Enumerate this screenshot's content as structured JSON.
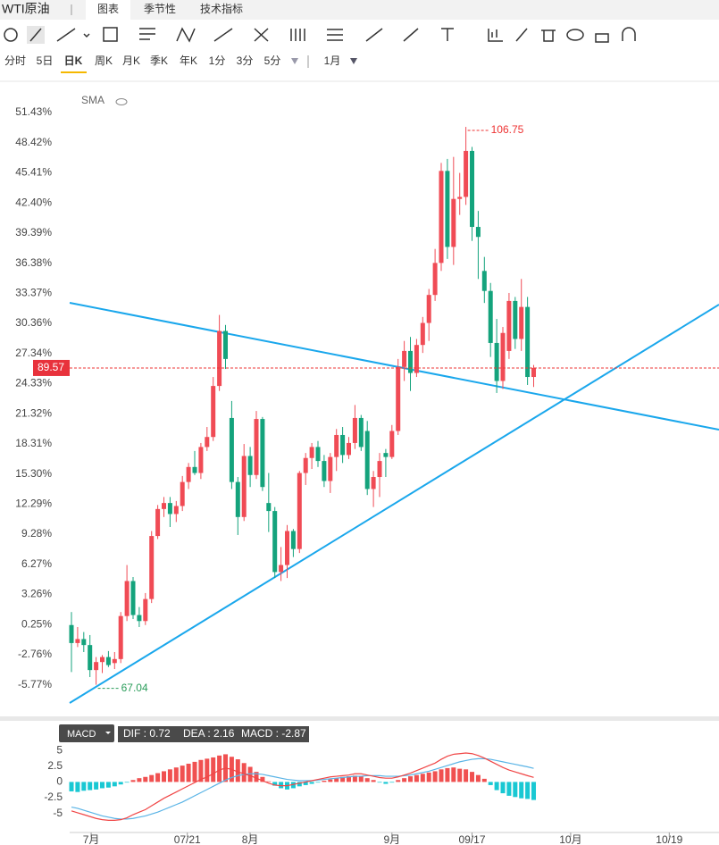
{
  "ui": {
    "instrument": "WTI原油",
    "tabs": [
      "图表",
      "季节性",
      "技术指标"
    ],
    "periods": [
      "分时",
      "5日",
      "日K",
      "周K",
      "月K",
      "季K",
      "年K",
      "1分",
      "3分",
      "5分"
    ],
    "range": "1月"
  },
  "chart_data": [
    {
      "type": "candlestick",
      "indicator": "SMA",
      "up_color": "#f04b55",
      "down_color": "#14a37c",
      "ohlc": [
        [
          0.2,
          1.5,
          -4.5,
          -1.6
        ],
        [
          -1.6,
          0,
          -2,
          -1.2
        ],
        [
          -1.2,
          -0.5,
          -2.5,
          -1.8
        ],
        [
          -1.8,
          -0.8,
          -5.0,
          -4.3
        ],
        [
          -4.3,
          -3.0,
          -5.77,
          -3.5
        ],
        [
          -3.5,
          -2.8,
          -4.6,
          -3.0
        ],
        [
          -3.0,
          -2.4,
          -4.0,
          -3.8
        ],
        [
          -3.6,
          -2.5,
          -4.2,
          -3.2
        ],
        [
          -3.2,
          1.5,
          -3.6,
          1.1
        ],
        [
          1.1,
          6.2,
          0.6,
          4.6
        ],
        [
          4.6,
          5.0,
          0.8,
          1.2
        ],
        [
          1.2,
          2.0,
          0.0,
          0.6
        ],
        [
          0.6,
          3.4,
          0.2,
          2.8
        ],
        [
          2.8,
          9.6,
          2.4,
          9.1
        ],
        [
          9.1,
          12.2,
          8.8,
          11.8
        ],
        [
          11.8,
          13.0,
          11.0,
          12.4
        ],
        [
          12.4,
          13.0,
          10.0,
          11.3
        ],
        [
          11.3,
          12.6,
          10.5,
          12.1
        ],
        [
          12.1,
          15.1,
          11.6,
          14.5
        ],
        [
          14.5,
          16.4,
          13.8,
          16.0
        ],
        [
          16.0,
          17.6,
          15.2,
          15.4
        ],
        [
          15.4,
          18.4,
          14.8,
          18.0
        ],
        [
          18.0,
          20.0,
          17.6,
          19.0
        ],
        [
          19.0,
          25.0,
          18.6,
          24.1
        ],
        [
          24.1,
          31.2,
          23.6,
          29.6
        ],
        [
          29.6,
          30.2,
          25.8,
          26.8
        ],
        [
          20.9,
          22.6,
          13.8,
          14.5
        ],
        [
          14.5,
          15.0,
          9.2,
          11.0
        ],
        [
          11.0,
          18.3,
          10.6,
          17.1
        ],
        [
          17.1,
          18.0,
          14.0,
          15.2
        ],
        [
          15.2,
          21.6,
          14.8,
          20.8
        ],
        [
          20.8,
          21.0,
          13.6,
          14.0
        ],
        [
          12.4,
          15.4,
          9.5,
          11.6
        ],
        [
          11.6,
          12.0,
          4.9,
          5.5
        ],
        [
          5.5,
          8.0,
          4.6,
          6.2
        ],
        [
          6.2,
          10.2,
          4.9,
          9.6
        ],
        [
          9.6,
          9.8,
          7.0,
          7.8
        ],
        [
          7.8,
          15.6,
          7.4,
          15.4
        ],
        [
          15.4,
          17.4,
          14.2,
          16.9
        ],
        [
          16.9,
          18.4,
          15.8,
          18.0
        ],
        [
          18.0,
          18.6,
          16.0,
          16.6
        ],
        [
          16.6,
          17.2,
          14.0,
          14.6
        ],
        [
          14.6,
          17.4,
          13.4,
          17.0
        ],
        [
          17.0,
          19.8,
          15.6,
          19.2
        ],
        [
          19.2,
          20.0,
          16.4,
          17.2
        ],
        [
          17.2,
          19.0,
          16.8,
          18.4
        ],
        [
          18.4,
          22.2,
          17.8,
          20.9
        ],
        [
          20.9,
          21.2,
          17.6,
          18.0
        ],
        [
          19.6,
          20.6,
          13.2,
          13.8
        ],
        [
          13.8,
          15.6,
          12.0,
          15.0
        ],
        [
          15.0,
          17.4,
          13.0,
          16.6
        ],
        [
          17.4,
          17.8,
          15.0,
          17.0
        ],
        [
          17.0,
          20.2,
          16.8,
          19.6
        ],
        [
          19.6,
          26.8,
          19.2,
          26.0
        ],
        [
          26.0,
          28.6,
          24.6,
          27.6
        ],
        [
          27.6,
          29.0,
          23.6,
          25.4
        ],
        [
          25.4,
          28.8,
          25.0,
          28.2
        ],
        [
          28.2,
          31.0,
          27.4,
          30.4
        ],
        [
          30.4,
          33.8,
          28.6,
          33.2
        ],
        [
          33.2,
          37.8,
          32.6,
          36.4
        ],
        [
          36.4,
          46.4,
          35.6,
          45.6
        ],
        [
          45.6,
          46.8,
          36.8,
          38.0
        ],
        [
          38.0,
          47.0,
          36.2,
          42.8
        ],
        [
          42.8,
          45.4,
          41.2,
          43.0
        ],
        [
          43.0,
          50.0,
          42.2,
          47.6
        ],
        [
          47.6,
          48.0,
          38.6,
          40.0
        ],
        [
          40.0,
          41.6,
          34.8,
          39.0
        ],
        [
          35.6,
          37.0,
          32.4,
          33.6
        ],
        [
          33.6,
          34.4,
          27.0,
          28.4
        ],
        [
          28.4,
          30.8,
          23.4,
          24.6
        ],
        [
          24.6,
          30.0,
          23.8,
          29.4
        ],
        [
          27.6,
          33.4,
          26.8,
          32.6
        ],
        [
          32.6,
          33.0,
          27.8,
          28.8
        ],
        [
          28.8,
          34.8,
          27.6,
          32.0
        ],
        [
          32.0,
          33.0,
          24.2,
          25.0
        ],
        [
          25.0,
          26.2,
          24.0,
          25.9
        ]
      ],
      "max_label": "106.75",
      "min_label": "67.04",
      "last_price": "89.57",
      "ylim": [
        -8.93,
        54.47
      ],
      "yticks": [
        {
          "value": 51.43,
          "label": "51.43%"
        },
        {
          "value": 48.42,
          "label": "48.42%"
        },
        {
          "value": 45.41,
          "label": "45.41%"
        },
        {
          "value": 42.4,
          "label": "42.40%"
        },
        {
          "value": 39.39,
          "label": "39.39%"
        },
        {
          "value": 36.38,
          "label": "36.38%"
        },
        {
          "value": 33.37,
          "label": "33.37%"
        },
        {
          "value": 30.36,
          "label": "30.36%"
        },
        {
          "value": 27.34,
          "label": "27.34%"
        },
        {
          "value": 24.33,
          "label": "24.33%"
        },
        {
          "value": 21.32,
          "label": "21.32%"
        },
        {
          "value": 18.31,
          "label": "18.31%"
        },
        {
          "value": 15.3,
          "label": "15.30%"
        },
        {
          "value": 12.29,
          "label": "12.29%"
        },
        {
          "value": 9.28,
          "label": "9.28%"
        },
        {
          "value": 6.27,
          "label": "6.27%"
        },
        {
          "value": 3.26,
          "label": "3.26%"
        },
        {
          "value": 0.25,
          "label": "0.25%"
        },
        {
          "value": -2.76,
          "label": "-2.76%"
        },
        {
          "value": -5.77,
          "label": "-5.77%"
        }
      ],
      "xlim": [
        -0.29,
        105.07
      ],
      "xticks": [
        {
          "value": 3.2,
          "label": "7月"
        },
        {
          "value": 18.8,
          "label": "07/21"
        },
        {
          "value": 29,
          "label": "8月"
        },
        {
          "value": 52,
          "label": "9月"
        },
        {
          "value": 65,
          "label": "09/17"
        },
        {
          "value": 81,
          "label": "10月"
        },
        {
          "value": 97,
          "label": "10/19"
        }
      ]
    },
    {
      "type": "macd",
      "name": "MACD",
      "readout": [
        "DIF : 0.72",
        "DEA : 2.16",
        "MACD : -2.87"
      ],
      "dif_color": "#f04545",
      "dea_color": "#5ab4e6",
      "up_color": "#f05050",
      "down_color": "#19c8d3",
      "dif": [
        -4.6,
        -4.9,
        -5.2,
        -5.5,
        -5.8,
        -6.0,
        -6.1,
        -6.1,
        -6.0,
        -5.7,
        -5.2,
        -4.8,
        -4.4,
        -3.8,
        -3.2,
        -2.6,
        -2.1,
        -1.6,
        -1.1,
        -0.6,
        -0.1,
        0.4,
        0.8,
        1.3,
        1.9,
        2.2,
        2.0,
        1.6,
        1.3,
        1.0,
        0.6,
        0.2,
        -0.2,
        -0.5,
        -0.6,
        -0.6,
        -0.4,
        -0.2,
        0.0,
        0.2,
        0.4,
        0.6,
        0.8,
        0.9,
        1.0,
        1.1,
        1.3,
        1.3,
        1.1,
        0.9,
        0.7,
        0.6,
        0.6,
        0.8,
        1.1,
        1.4,
        1.8,
        2.2,
        2.6,
        3.0,
        3.6,
        4.1,
        4.4,
        4.5,
        4.6,
        4.5,
        4.2,
        3.8,
        3.3,
        2.8,
        2.3,
        1.9,
        1.6,
        1.3,
        1.0,
        0.72
      ],
      "dea": [
        -4.0,
        -4.2,
        -4.5,
        -4.8,
        -5.1,
        -5.4,
        -5.6,
        -5.8,
        -5.9,
        -5.9,
        -5.8,
        -5.6,
        -5.4,
        -5.1,
        -4.8,
        -4.4,
        -4.0,
        -3.6,
        -3.2,
        -2.7,
        -2.2,
        -1.7,
        -1.2,
        -0.7,
        -0.2,
        0.3,
        0.7,
        1.0,
        1.2,
        1.3,
        1.3,
        1.2,
        1.0,
        0.8,
        0.6,
        0.4,
        0.3,
        0.2,
        0.2,
        0.2,
        0.3,
        0.4,
        0.5,
        0.6,
        0.7,
        0.8,
        0.9,
        0.9,
        1.0,
        1.0,
        1.0,
        0.9,
        0.9,
        0.9,
        1.0,
        1.1,
        1.3,
        1.5,
        1.7,
        2.0,
        2.3,
        2.6,
        2.9,
        3.2,
        3.4,
        3.6,
        3.7,
        3.7,
        3.6,
        3.4,
        3.2,
        3.0,
        2.8,
        2.6,
        2.4,
        2.16
      ],
      "macd": [
        -1.5,
        -1.6,
        -1.4,
        -1.3,
        -1.2,
        -1.0,
        -0.9,
        -0.7,
        -0.4,
        -0.1,
        0.3,
        0.6,
        0.8,
        1.1,
        1.4,
        1.7,
        2.0,
        2.3,
        2.6,
        2.9,
        3.2,
        3.5,
        3.7,
        3.9,
        4.2,
        4.4,
        4.0,
        3.6,
        3.0,
        2.4,
        1.6,
        0.8,
        0.1,
        -0.6,
        -1.0,
        -1.2,
        -1.0,
        -0.7,
        -0.5,
        -0.3,
        -0.1,
        0.2,
        0.4,
        0.6,
        0.8,
        0.9,
        1.0,
        0.9,
        0.6,
        0.3,
        -0.1,
        -0.3,
        -0.1,
        0.3,
        0.6,
        0.9,
        1.1,
        1.3,
        1.5,
        1.7,
        2.0,
        2.2,
        2.3,
        2.1,
        2.0,
        1.6,
        1.1,
        0.5,
        -0.5,
        -1.3,
        -1.8,
        -2.2,
        -2.4,
        -2.6,
        -2.7,
        -2.87
      ],
      "ylim": [
        -8.04,
        6.45
      ],
      "yticks": [
        5,
        2.5,
        0,
        -2.5,
        -5
      ]
    }
  ]
}
